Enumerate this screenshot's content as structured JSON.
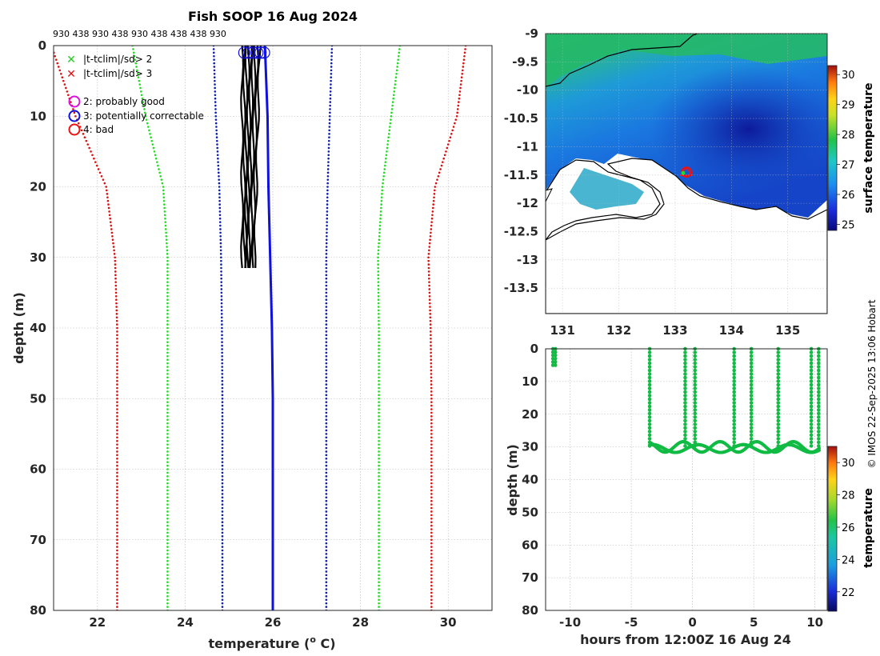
{
  "colors": {
    "clim2": "#22dd22",
    "clim3": "#dd1111",
    "climsd1": "#0d1fb0",
    "profile_black": "#000000",
    "profile_blue": "#1111dd",
    "marker_green": "#11bb44"
  },
  "chart_data": [
    {
      "type": "line",
      "name": "profiles",
      "title": "Fish SOOP 16 Aug 2024",
      "xlabel": "temperature (",
      "xlabel_sup": "o",
      "xlabel_end": " C)",
      "ylabel": "depth (m)",
      "xlim": [
        21,
        31
      ],
      "ylim": [
        80,
        0
      ],
      "xticks": [
        "22",
        "24",
        "26",
        "28",
        "30"
      ],
      "yticks": [
        "0",
        "10",
        "20",
        "30",
        "40",
        "50",
        "60",
        "70",
        "80"
      ],
      "top_labels": "930 438 930 438 930 438 438 438 930",
      "legend": [
        {
          "symbol": "x",
          "color": "#22cc22",
          "text": "|t-tclim|/sd> 2"
        },
        {
          "symbol": "x",
          "color": "#dd1111",
          "text": "|t-tclim|/sd> 3"
        },
        {
          "symbol": "o",
          "color": "#dd11dd",
          "text": "2: probably good"
        },
        {
          "symbol": "o",
          "color": "#1111dd",
          "text": "3: potentially correctable"
        },
        {
          "symbol": "o",
          "color": "#ee1111",
          "text": "4: bad"
        }
      ],
      "series": [
        {
          "name": "clim -3sd",
          "color": "#dd1111",
          "depth": [
            0,
            10,
            20,
            30,
            40,
            50,
            60,
            70,
            80
          ],
          "temp": [
            20.95,
            21.5,
            22.2,
            22.4,
            22.45,
            22.45,
            22.45,
            22.45,
            22.45
          ]
        },
        {
          "name": "clim -2sd",
          "color": "#22dd22",
          "depth": [
            0,
            10,
            20,
            30,
            40,
            50,
            60,
            70,
            80
          ],
          "temp": [
            22.8,
            23.1,
            23.5,
            23.6,
            23.6,
            23.6,
            23.6,
            23.6,
            23.6
          ]
        },
        {
          "name": "clim -1sd",
          "color": "#0d1fb0",
          "depth": [
            0,
            10,
            20,
            30,
            40,
            50,
            60,
            70,
            80
          ],
          "temp": [
            24.65,
            24.7,
            24.78,
            24.82,
            24.84,
            24.85,
            24.85,
            24.85,
            24.85
          ]
        },
        {
          "name": "clim +1sd",
          "color": "#0d1fb0",
          "depth": [
            0,
            10,
            20,
            30,
            40,
            50,
            60,
            70,
            80
          ],
          "temp": [
            27.35,
            27.3,
            27.25,
            27.22,
            27.22,
            27.22,
            27.22,
            27.22,
            27.22
          ]
        },
        {
          "name": "clim +2sd",
          "color": "#22dd22",
          "depth": [
            0,
            10,
            20,
            30,
            40,
            50,
            60,
            70,
            80
          ],
          "temp": [
            28.9,
            28.7,
            28.5,
            28.4,
            28.42,
            28.42,
            28.42,
            28.42,
            28.42
          ]
        },
        {
          "name": "clim +3sd",
          "color": "#dd1111",
          "depth": [
            0,
            10,
            20,
            30,
            40,
            50,
            60,
            70,
            80
          ],
          "temp": [
            30.4,
            30.2,
            29.7,
            29.55,
            29.6,
            29.62,
            29.62,
            29.62,
            29.62
          ]
        }
      ],
      "profile_mean": {
        "name": "selected profile",
        "color": "#1111dd",
        "depth": [
          0,
          5,
          10,
          20,
          30,
          40,
          50,
          60,
          70,
          80
        ],
        "temp": [
          25.82,
          25.85,
          25.88,
          25.9,
          25.94,
          25.98,
          26.0,
          26.0,
          26.0,
          26.0
        ]
      },
      "profile_casts": {
        "color": "#000000",
        "depth_max": 31.5,
        "surface_temps": [
          25.3,
          25.35,
          25.4,
          25.45,
          25.5,
          25.55,
          25.6,
          25.65,
          25.7
        ],
        "bottom_temps": [
          25.3,
          25.35,
          25.38,
          25.4,
          25.42,
          25.45,
          25.5,
          25.55,
          25.58
        ]
      },
      "flag_circles": {
        "color": "#1111dd",
        "temps": [
          25.35,
          25.45,
          25.55,
          25.65,
          25.72,
          25.8
        ],
        "depth": 1
      }
    },
    {
      "type": "heatmap",
      "name": "surface temperature map",
      "xlim": [
        130.7,
        135.7
      ],
      "ylim": [
        -13.95,
        -9.0
      ],
      "xticks": [
        "131",
        "132",
        "133",
        "134",
        "135"
      ],
      "yticks": [
        "-9",
        "-9.5",
        "-10",
        "-10.5",
        "-11",
        "-11.5",
        "-12",
        "-12.5",
        "-13",
        "-13.5"
      ],
      "colorbar_label": "surface temperature",
      "colorbar_range": [
        24.8,
        30.3
      ],
      "colorbar_ticks": [
        "25",
        "26",
        "27",
        "28",
        "29",
        "30"
      ],
      "vessel_lon": 133.2,
      "vessel_lat": -11.45
    },
    {
      "type": "scatter",
      "name": "depth vs time",
      "xlabel": "hours from 12:00Z 16 Aug 24",
      "ylabel": "depth (m)",
      "xlim": [
        -12,
        11
      ],
      "ylim": [
        80,
        0
      ],
      "xticks": [
        "-10",
        "-5",
        "0",
        "5",
        "10"
      ],
      "yticks": [
        "0",
        "10",
        "20",
        "30",
        "40",
        "50",
        "60",
        "70",
        "80"
      ],
      "colorbar_label": "temperature",
      "colorbar_range": [
        20.8,
        31
      ],
      "colorbar_ticks": [
        "22",
        "24",
        "26",
        "28",
        "30"
      ],
      "casts_hours": [
        -11.4,
        -11.2,
        -3.5,
        -0.6,
        0.2,
        3.4,
        4.8,
        7.0,
        9.7,
        10.3
      ],
      "bottom_depth": 30.5,
      "short_cast": {
        "hour": -11.3,
        "max_depth": 5
      }
    }
  ],
  "footer": {
    "credit": "© IMOS 22-Sep-2025 13:06 Hobart"
  }
}
